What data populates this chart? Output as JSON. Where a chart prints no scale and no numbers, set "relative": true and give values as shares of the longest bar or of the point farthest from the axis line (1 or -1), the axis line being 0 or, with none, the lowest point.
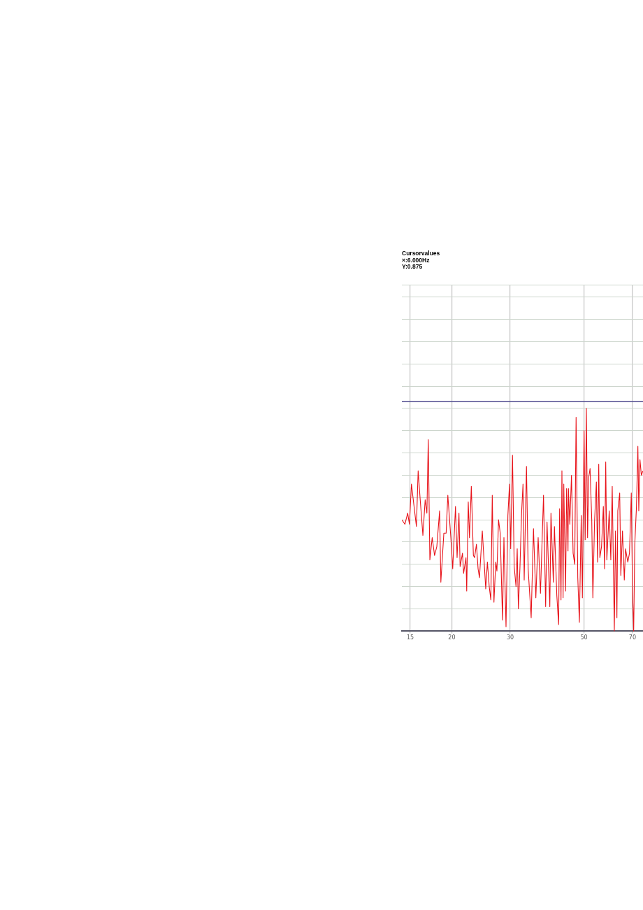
{
  "chart_data": {
    "type": "line",
    "annotations": [
      "Cursorvalues",
      "×:6.000Hz",
      "Y:0.875"
    ],
    "relative": true,
    "log": "x",
    "grid": true,
    "marker": "none",
    "line_style": "solid",
    "tick_labels": "x",
    "color": "#e8141b",
    "xlim": [
      14.15,
      75.3
    ],
    "xticks": [
      15,
      20,
      30,
      50,
      70
    ],
    "ref_lines": [
      {
        "axis": "y",
        "value": 1.03,
        "color": "#4e4a8e"
      }
    ],
    "x": [
      14.15,
      14.45,
      14.73,
      14.91,
      15.12,
      15.65,
      15.84,
      16.05,
      16.37,
      16.63,
      16.83,
      16.99,
      17.18,
      17.46,
      17.75,
      18.03,
      18.38,
      18.54,
      18.93,
      19.23,
      19.46,
      19.87,
      20.13,
      20.52,
      20.75,
      21.02,
      21.19,
      21.54,
      21.71,
      22.07,
      22.18,
      22.42,
      22.61,
      22.9,
      23.23,
      23.42,
      23.73,
      24.0,
      24.23,
      24.71,
      25.31,
      25.6,
      25.93,
      26.22,
      26.48,
      26.79,
      27.13,
      27.35,
      27.66,
      27.98,
      28.43,
      28.71,
      29.13,
      29.51,
      29.84,
      30.09,
      30.47,
      30.83,
      31.22,
      31.48,
      31.74,
      32.09,
      32.45,
      32.77,
      33.04,
      33.57,
      33.96,
      34.68,
      35.24,
      35.82,
      36.4,
      36.99,
      37.78,
      38.34,
      38.71,
      39.47,
      39.78,
      40.44,
      40.75,
      41.43,
      41.95,
      42.24,
      42.65,
      42.92,
      43.27,
      43.48,
      44.03,
      44.33,
      44.77,
      44.9,
      45.33,
      45.86,
      46.38,
      46.9,
      47.35,
      47.91,
      48.44,
      49.08,
      49.46,
      50.04,
      50.43,
      50.85,
      51.27,
      51.67,
      52.17,
      52.78,
      53.19,
      53.81,
      54.5,
      54.95,
      55.4,
      55.83,
      56.49,
      57.2,
      57.67,
      58.15,
      58.6,
      59.58,
      60.24,
      60.83,
      61.33,
      61.72,
      62.23,
      62.84,
      63.23,
      64.07,
      64.57,
      65.32,
      66.15,
      66.7,
      67.77,
      68.56,
      69.43,
      70.01,
      70.59,
      71.13,
      71.97,
      72.67,
      73.13,
      73.73,
      74.45,
      75.28
    ],
    "values": [
      0.5,
      0.48,
      0.53,
      0.48,
      0.66,
      0.47,
      0.72,
      0.6,
      0.43,
      0.59,
      0.53,
      0.86,
      0.32,
      0.42,
      0.34,
      0.38,
      0.54,
      0.22,
      0.44,
      0.44,
      0.61,
      0.42,
      0.28,
      0.56,
      0.33,
      0.53,
      0.29,
      0.35,
      0.26,
      0.33,
      0.18,
      0.58,
      0.42,
      0.65,
      0.34,
      0.33,
      0.39,
      0.28,
      0.24,
      0.45,
      0.19,
      0.31,
      0.2,
      0.14,
      0.61,
      0.13,
      0.31,
      0.27,
      0.5,
      0.44,
      0.05,
      0.42,
      0.02,
      0.52,
      0.66,
      0.37,
      0.79,
      0.29,
      0.2,
      0.37,
      0.1,
      0.29,
      0.53,
      0.66,
      0.23,
      0.74,
      0.28,
      0.06,
      0.46,
      0.15,
      0.42,
      0.17,
      0.61,
      0.11,
      0.49,
      0.11,
      0.53,
      0.22,
      0.47,
      0.16,
      0.03,
      0.55,
      0.14,
      0.72,
      0.15,
      0.66,
      0.18,
      0.64,
      0.36,
      0.64,
      0.48,
      0.7,
      0.35,
      0.3,
      0.96,
      0.24,
      0.04,
      0.52,
      0.15,
      0.9,
      0.41,
      1.0,
      0.42,
      0.69,
      0.73,
      0.5,
      0.15,
      0.49,
      0.67,
      0.31,
      0.75,
      0.33,
      0.38,
      0.56,
      0.28,
      0.76,
      0.32,
      0.54,
      0.32,
      0.65,
      0.29,
      0,
      0.45,
      0.06,
      0.54,
      0.62,
      0.25,
      0.45,
      0.23,
      0.37,
      0.31,
      0.35,
      0.62,
      0.18,
      0,
      0.39,
      0.56,
      0.83,
      0.54,
      0.77,
      0.7,
      0.72
    ]
  }
}
